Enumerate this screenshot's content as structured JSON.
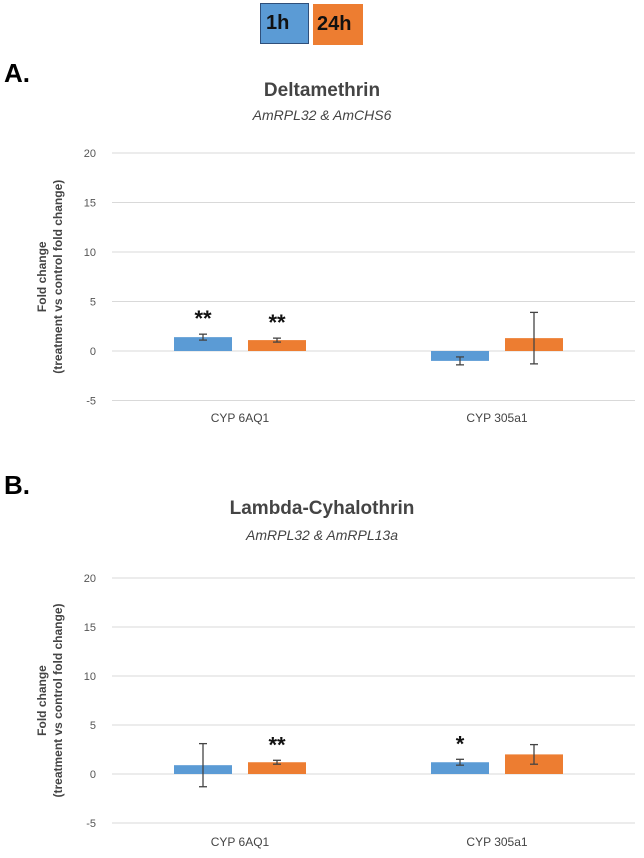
{
  "legend": {
    "items": [
      {
        "label": "1h",
        "color": "#5b9bd5"
      },
      {
        "label": "24h",
        "color": "#ed7d31"
      }
    ],
    "placement": "top"
  },
  "chart_data": [
    {
      "type": "bar",
      "panel_label": "A.",
      "title": "Deltamethrin",
      "subtitle": "AmRPL32 & AmCHS6",
      "ylabel": "Fold change",
      "ylabel2": "(treatment vs control fold change)",
      "ylim": [
        -5,
        20
      ],
      "yticks": [
        -5,
        0,
        5,
        10,
        15,
        20
      ],
      "grid": true,
      "categories": [
        "CYP 6AQ1",
        "CYP 305a1"
      ],
      "series": [
        {
          "name": "1h",
          "color": "#5b9bd5",
          "values": [
            1.4,
            -1.0
          ],
          "errors": [
            0.3,
            0.4
          ],
          "significance": [
            "**",
            ""
          ]
        },
        {
          "name": "24h",
          "color": "#ed7d31",
          "values": [
            1.1,
            1.3
          ],
          "errors": [
            0.2,
            2.6
          ],
          "significance": [
            "**",
            ""
          ]
        }
      ]
    },
    {
      "type": "bar",
      "panel_label": "B.",
      "title": "Lambda-Cyhalothrin",
      "subtitle": "AmRPL32 & AmRPL13a",
      "ylabel": "Fold change",
      "ylabel2": "(treatment vs control fold change)",
      "ylim": [
        -5,
        20
      ],
      "yticks": [
        -5,
        0,
        5,
        10,
        15,
        20
      ],
      "grid": true,
      "categories": [
        "CYP 6AQ1",
        "CYP 305a1"
      ],
      "series": [
        {
          "name": "1h",
          "color": "#5b9bd5",
          "values": [
            0.9,
            1.2
          ],
          "errors": [
            2.2,
            0.3
          ],
          "significance": [
            "",
            "*"
          ]
        },
        {
          "name": "24h",
          "color": "#ed7d31",
          "values": [
            1.2,
            2.0
          ],
          "errors": [
            0.2,
            1.0
          ],
          "significance": [
            "**",
            ""
          ]
        }
      ]
    }
  ]
}
